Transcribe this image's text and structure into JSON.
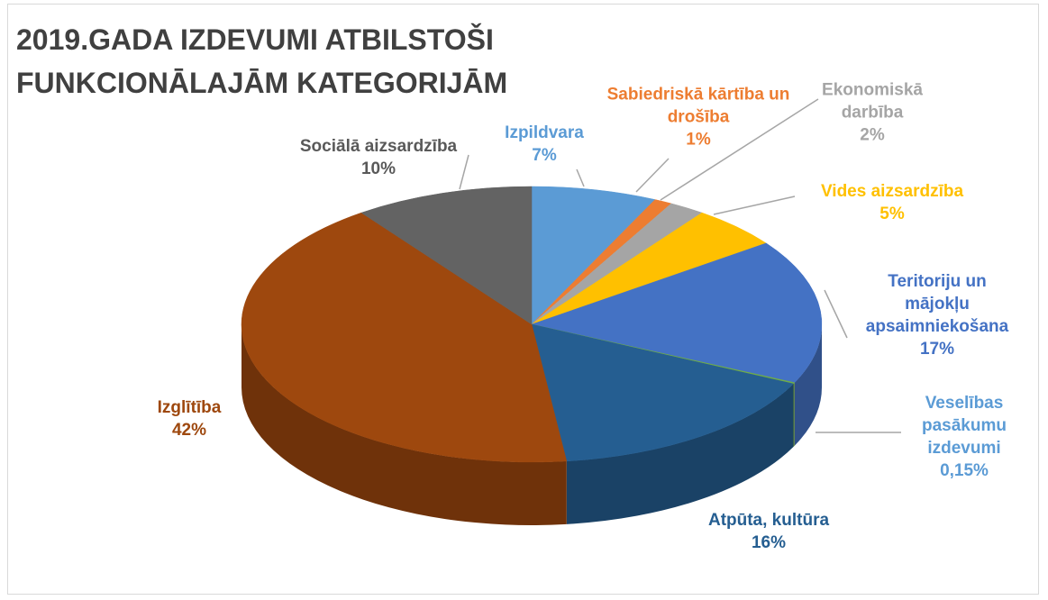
{
  "chart_data": {
    "type": "pie",
    "style": "3d",
    "title": "2019.GADA IZDEVUMI ATBILSTOŠI FUNKCIONĀLAJĀM KATEGORIJĀM",
    "categories": [
      "Izpildvara",
      "Sabiedriskā kārtība un drošība",
      "Ekonomiskā darbība",
      "Vides aizsardzība",
      "Teritoriju un mājokļu apsaimniekošana",
      "Veselības pasākumu izdevumi",
      "Atpūta, kultūra",
      "Izglītība",
      "Sociālā aizsardzība"
    ],
    "values": [
      7,
      1,
      2,
      5,
      17,
      0.15,
      16,
      42,
      10
    ],
    "value_labels": [
      "7%",
      "1%",
      "2%",
      "5%",
      "17%",
      "0,15%",
      "16%",
      "42%",
      "10%"
    ],
    "colors": [
      "#5b9bd5",
      "#ed7d31",
      "#a5a5a5",
      "#ffc000",
      "#4472c4",
      "#70ad47",
      "#255e91",
      "#9e480e",
      "#636363"
    ],
    "label_colors": [
      "#5b9bd5",
      "#ed7d31",
      "#a5a5a5",
      "#ffc000",
      "#4472c4",
      "#5b9bd5",
      "#255e91",
      "#9e480e",
      "#595959"
    ]
  }
}
